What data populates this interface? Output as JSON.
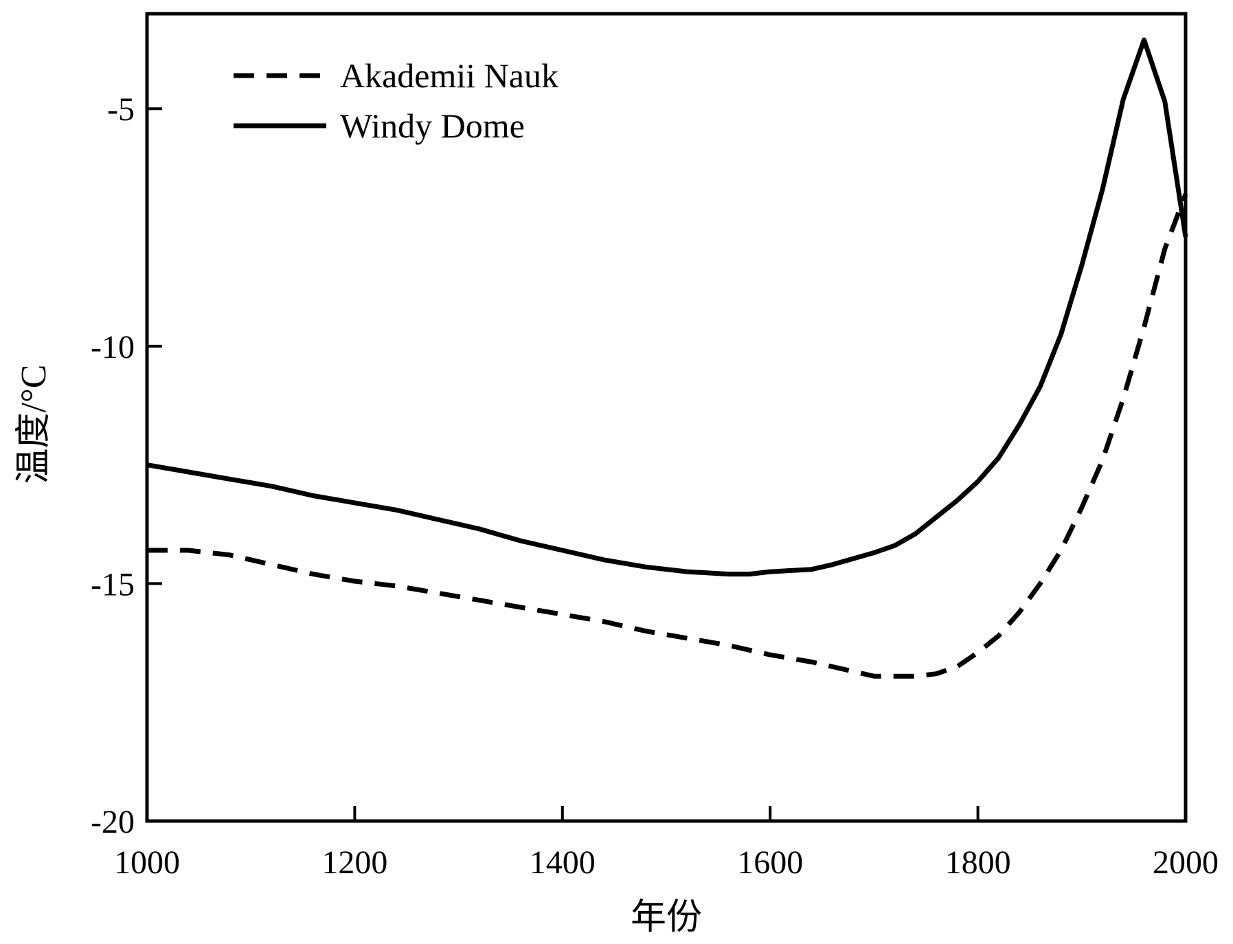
{
  "chart_data": {
    "type": "line",
    "title": "",
    "xlabel": "年份",
    "ylabel": "温度/°C",
    "xlim": [
      1000,
      2000
    ],
    "ylim": [
      -20,
      -3.0
    ],
    "xticks": [
      1000,
      1200,
      1400,
      1600,
      1800,
      2000
    ],
    "xtick_labels": [
      "1000",
      "1200",
      "1400",
      "1600",
      "1800",
      "2000"
    ],
    "yticks": [
      -20,
      -15,
      -10,
      -5
    ],
    "ytick_labels": [
      "-20",
      "-15",
      "-10",
      "-5"
    ],
    "grid": false,
    "legend_position": "top-left",
    "series": [
      {
        "name": "Akademii Nauk",
        "style": "dashed",
        "color": "#000000",
        "x": [
          1000,
          1040,
          1080,
          1120,
          1160,
          1200,
          1240,
          1280,
          1320,
          1360,
          1400,
          1440,
          1480,
          1520,
          1560,
          1600,
          1640,
          1680,
          1700,
          1720,
          1740,
          1760,
          1780,
          1800,
          1820,
          1840,
          1860,
          1880,
          1900,
          1920,
          1940,
          1960,
          1980,
          2000
        ],
        "y": [
          -14.3,
          -14.3,
          -14.4,
          -14.6,
          -14.8,
          -14.95,
          -15.05,
          -15.2,
          -15.35,
          -15.5,
          -15.65,
          -15.8,
          -16.0,
          -16.15,
          -16.3,
          -16.5,
          -16.65,
          -16.85,
          -16.95,
          -16.95,
          -16.95,
          -16.9,
          -16.75,
          -16.45,
          -16.1,
          -15.6,
          -15.0,
          -14.3,
          -13.4,
          -12.4,
          -11.1,
          -9.6,
          -7.95,
          -6.8
        ]
      },
      {
        "name": "Windy Dome",
        "style": "solid",
        "color": "#000000",
        "x": [
          1000,
          1040,
          1080,
          1120,
          1160,
          1200,
          1240,
          1280,
          1320,
          1360,
          1400,
          1440,
          1480,
          1520,
          1560,
          1580,
          1600,
          1640,
          1660,
          1700,
          1720,
          1740,
          1760,
          1780,
          1800,
          1820,
          1840,
          1860,
          1880,
          1900,
          1920,
          1940,
          1960,
          1980,
          2000
        ],
        "y": [
          -12.5,
          -12.65,
          -12.8,
          -12.95,
          -13.15,
          -13.3,
          -13.45,
          -13.65,
          -13.85,
          -14.1,
          -14.3,
          -14.5,
          -14.65,
          -14.75,
          -14.8,
          -14.8,
          -14.75,
          -14.7,
          -14.6,
          -14.35,
          -14.2,
          -13.95,
          -13.6,
          -13.25,
          -12.85,
          -12.35,
          -11.65,
          -10.85,
          -9.75,
          -8.3,
          -6.7,
          -4.8,
          -3.55,
          -4.85,
          -7.7
        ]
      }
    ]
  }
}
